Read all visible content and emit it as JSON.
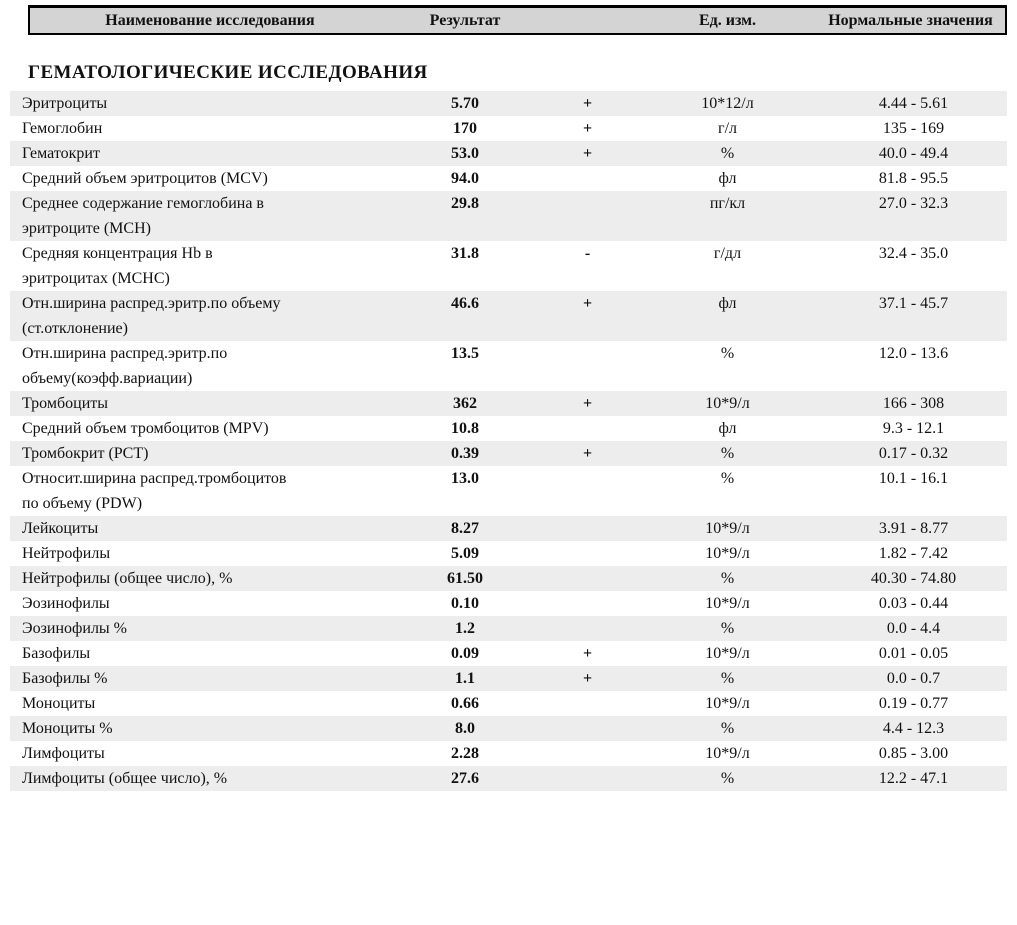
{
  "header": {
    "columns": [
      "Наименование исследования",
      "Результат",
      "Ед. изм.",
      "Нормальные значения"
    ]
  },
  "section": {
    "title": "ГЕМАТОЛОГИЧЕСКИЕ ИССЛЕДОВАНИЯ"
  },
  "rows": [
    {
      "name": "Эритроциты",
      "result": "5.70",
      "flag": "+",
      "units": "10*12/л",
      "range": "4.44 - 5.61"
    },
    {
      "name": "Гемоглобин",
      "result": "170",
      "flag": "+",
      "units": "г/л",
      "range": "135 - 169"
    },
    {
      "name": "Гематокрит",
      "result": "53.0",
      "flag": "+",
      "units": "%",
      "range": "40.0 - 49.4"
    },
    {
      "name": "Средний объем эритроцитов (MCV)",
      "result": "94.0",
      "flag": "",
      "units": "фл",
      "range": "81.8 - 95.5"
    },
    {
      "name": "Среднее содержание гемоглобина в\nэритроците (MCH)",
      "result": "29.8",
      "flag": "",
      "units": "пг/кл",
      "range": "27.0 - 32.3"
    },
    {
      "name": "Средняя концентрация Hb в\nэритроцитах (MCHC)",
      "result": "31.8",
      "flag": "-",
      "units": "г/дл",
      "range": "32.4 - 35.0"
    },
    {
      "name": "Отн.ширина распред.эритр.по объему\n(ст.отклонение)",
      "result": "46.6",
      "flag": "+",
      "units": "фл",
      "range": "37.1 - 45.7"
    },
    {
      "name": "Отн.ширина распред.эритр.по\nобъему(коэфф.вариации)",
      "result": "13.5",
      "flag": "",
      "units": "%",
      "range": "12.0 - 13.6"
    },
    {
      "name": "Тромбоциты",
      "result": "362",
      "flag": "+",
      "units": "10*9/л",
      "range": "166 - 308"
    },
    {
      "name": "Средний объем тромбоцитов (MPV)",
      "result": "10.8",
      "flag": "",
      "units": "фл",
      "range": "9.3 - 12.1"
    },
    {
      "name": "Тромбокрит (PCT)",
      "result": "0.39",
      "flag": "+",
      "units": "%",
      "range": "0.17 - 0.32"
    },
    {
      "name": "Относит.ширина распред.тромбоцитов\nпо объему (PDW)",
      "result": "13.0",
      "flag": "",
      "units": "%",
      "range": "10.1 - 16.1"
    },
    {
      "name": "Лейкоциты",
      "result": "8.27",
      "flag": "",
      "units": "10*9/л",
      "range": "3.91 - 8.77"
    },
    {
      "name": "Нейтрофилы",
      "result": "5.09",
      "flag": "",
      "units": "10*9/л",
      "range": "1.82 - 7.42"
    },
    {
      "name": "Нейтрофилы (общее число), %",
      "result": "61.50",
      "flag": "",
      "units": "%",
      "range": "40.30 - 74.80"
    },
    {
      "name": "Эозинофилы",
      "result": "0.10",
      "flag": "",
      "units": "10*9/л",
      "range": "0.03 - 0.44"
    },
    {
      "name": "Эозинофилы %",
      "result": "1.2",
      "flag": "",
      "units": "%",
      "range": "0.0 - 4.4"
    },
    {
      "name": "Базофилы",
      "result": "0.09",
      "flag": "+",
      "units": "10*9/л",
      "range": "0.01 - 0.05"
    },
    {
      "name": "Базофилы %",
      "result": "1.1",
      "flag": "+",
      "units": "%",
      "range": "0.0 - 0.7"
    },
    {
      "name": "Моноциты",
      "result": "0.66",
      "flag": "",
      "units": "10*9/л",
      "range": "0.19 - 0.77"
    },
    {
      "name": "Моноциты %",
      "result": "8.0",
      "flag": "",
      "units": "%",
      "range": "4.4 - 12.3"
    },
    {
      "name": "Лимфоциты",
      "result": "2.28",
      "flag": "",
      "units": "10*9/л",
      "range": "0.85 - 3.00"
    },
    {
      "name": "Лимфоциты (общее число), %",
      "result": "27.6",
      "flag": "",
      "units": "%",
      "range": "12.2 - 47.1"
    }
  ],
  "colors": {
    "stripe": "#ededed",
    "header_bg": "#d4d4d4",
    "border": "#000000",
    "text": "#111111"
  }
}
